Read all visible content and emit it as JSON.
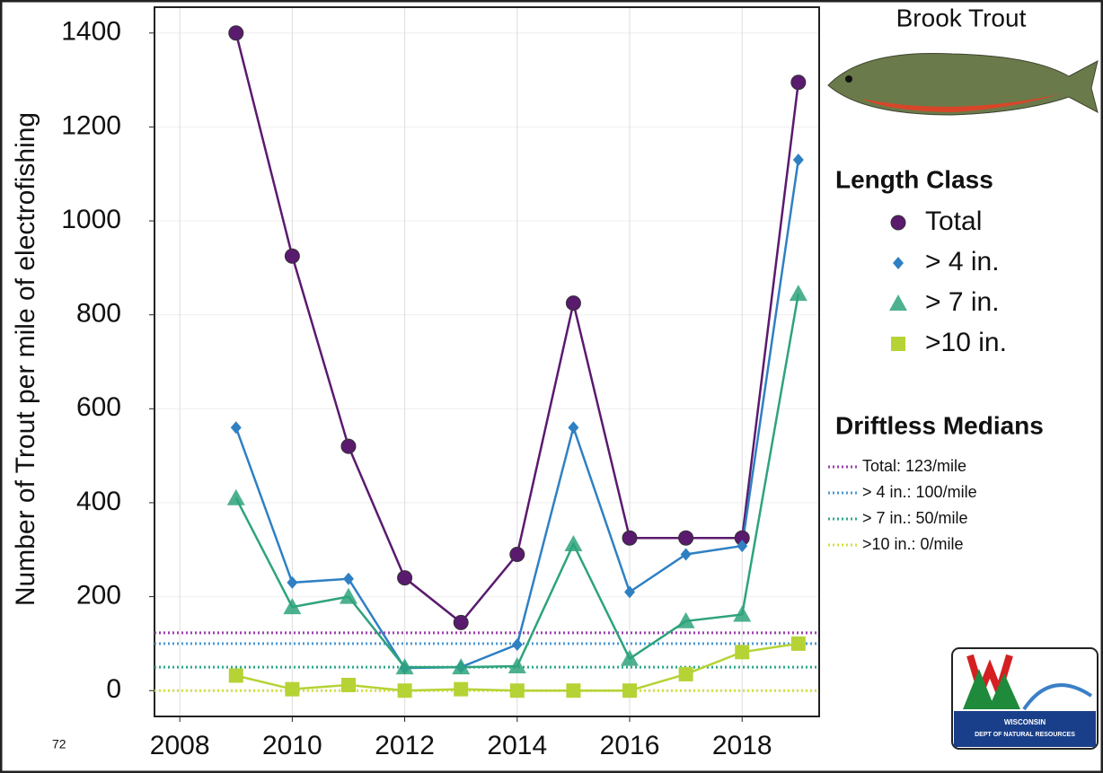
{
  "chart_data": {
    "type": "line",
    "y_label": "Number of Trout per mile of electrofishing",
    "x": [
      2009,
      2010,
      2011,
      2012,
      2013,
      2014,
      2015,
      2016,
      2017,
      2018,
      2019
    ],
    "xlim": [
      2007.55,
      2019.37
    ],
    "xticks": [
      2008,
      2010,
      2012,
      2014,
      2016,
      2018
    ],
    "ylim": [
      -55,
      1455
    ],
    "yticks": [
      0,
      200,
      400,
      600,
      800,
      1000,
      1200,
      1400
    ],
    "grid": true,
    "legend_title": "Length Class",
    "series": [
      {
        "name": "Total",
        "color": "#5a1a6e",
        "marker": "circle",
        "values": [
          1400,
          925,
          520,
          240,
          145,
          290,
          825,
          325,
          325,
          325,
          1295
        ]
      },
      {
        "name": "> 4 in.",
        "color": "#2f80c3",
        "marker": "diamond",
        "values": [
          560,
          230,
          238,
          48,
          50,
          98,
          560,
          210,
          290,
          308,
          1130
        ]
      },
      {
        "name": "> 7 in.",
        "color": "#2ea37c",
        "marker": "triangle",
        "values": [
          410,
          178,
          200,
          50,
          50,
          52,
          312,
          68,
          148,
          162,
          845
        ]
      },
      {
        "name": ">10 in.",
        "color": "#b5d335",
        "marker": "square",
        "values": [
          32,
          3,
          12,
          0,
          3,
          0,
          0,
          0,
          35,
          82,
          100
        ]
      }
    ],
    "medians_title": "Driftless Medians",
    "medians": [
      {
        "label": "Total: 123/mile",
        "value": 123,
        "color": "#9b3fae"
      },
      {
        "label": "> 4 in.: 100/mile",
        "value": 100,
        "color": "#4a9ad4"
      },
      {
        "label": "> 7 in.: 50/mile",
        "value": 50,
        "color": "#2ea98a"
      },
      {
        "label": ">10 in.: 0/mile",
        "value": 0,
        "color": "#d4e040"
      }
    ]
  },
  "species_title": "Brook Trout",
  "page_number": "72",
  "logo_text": [
    "WISCONSIN",
    "DEPT OF NATURAL RESOURCES"
  ]
}
